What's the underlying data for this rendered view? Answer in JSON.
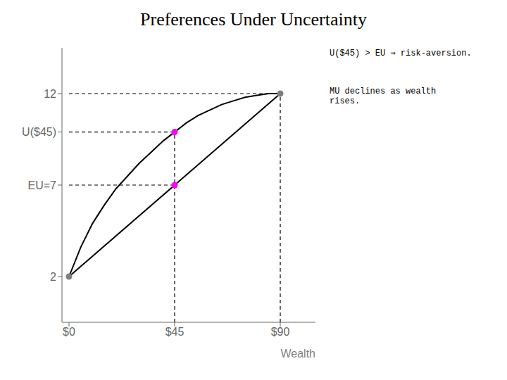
{
  "chart_data": {
    "type": "line",
    "title": "Preferences Under Uncertainty",
    "xlabel": "Wealth",
    "annotations": [
      "U($45) > EU ⇒ risk-aversion.",
      "MU declines as wealth\nrises."
    ],
    "xlim": [
      -3,
      105
    ],
    "ylim": [
      -0.5,
      14.5
    ],
    "xticks": [
      {
        "value": 0,
        "label": "$0"
      },
      {
        "value": 45,
        "label": "$45"
      },
      {
        "value": 90,
        "label": "$90"
      }
    ],
    "yticks": [
      2.0,
      {
        "value": 7.0,
        "label": "EU=7"
      },
      {
        "value": 9.9,
        "label": "U($45)"
      },
      12.0
    ],
    "grid": false,
    "series": [
      {
        "type": "line",
        "line_style": "solid",
        "color": "#000000",
        "x": [
          0,
          5,
          10,
          15,
          20,
          25,
          30,
          35,
          40,
          45,
          50,
          55,
          60,
          65,
          70,
          75,
          80,
          85,
          90
        ],
        "values": [
          2,
          3.6,
          4.9,
          5.9,
          6.8,
          7.5,
          8.2,
          8.8,
          9.4,
          9.9,
          10.4,
          10.8,
          11.1,
          11.4,
          11.6,
          11.8,
          11.9,
          12.0,
          12.0
        ]
      },
      {
        "type": "line",
        "line_style": "solid",
        "color": "#000000",
        "x": [
          0,
          90
        ],
        "values": [
          2,
          12
        ]
      },
      {
        "type": "line",
        "line_style": "dashed",
        "color": "#000000",
        "x": [
          0,
          90
        ],
        "values": [
          12.0,
          12.0
        ]
      },
      {
        "type": "line",
        "line_style": "dashed",
        "color": "#000000",
        "x": [
          0,
          45
        ],
        "values": [
          9.9,
          9.9
        ]
      },
      {
        "type": "line",
        "line_style": "dashed",
        "color": "#000000",
        "x": [
          0,
          45
        ],
        "values": [
          7.0,
          7.0
        ]
      },
      {
        "type": "line",
        "line_style": "dashed",
        "color": "#000000",
        "x": [
          45,
          45
        ],
        "values": [
          -0.5,
          9.9
        ]
      },
      {
        "type": "line",
        "line_style": "dashed",
        "color": "#000000",
        "x": [
          90,
          90
        ],
        "values": [
          -0.5,
          12.0
        ]
      },
      {
        "type": "scatter",
        "marker": "circle",
        "color": "#7f7f7f",
        "x": [
          0,
          90
        ],
        "values": [
          2,
          12.0
        ]
      },
      {
        "type": "scatter",
        "marker": "circle",
        "color": "#ff00ff",
        "x": [
          45,
          45
        ],
        "values": [
          9.9,
          7.0
        ]
      }
    ]
  }
}
